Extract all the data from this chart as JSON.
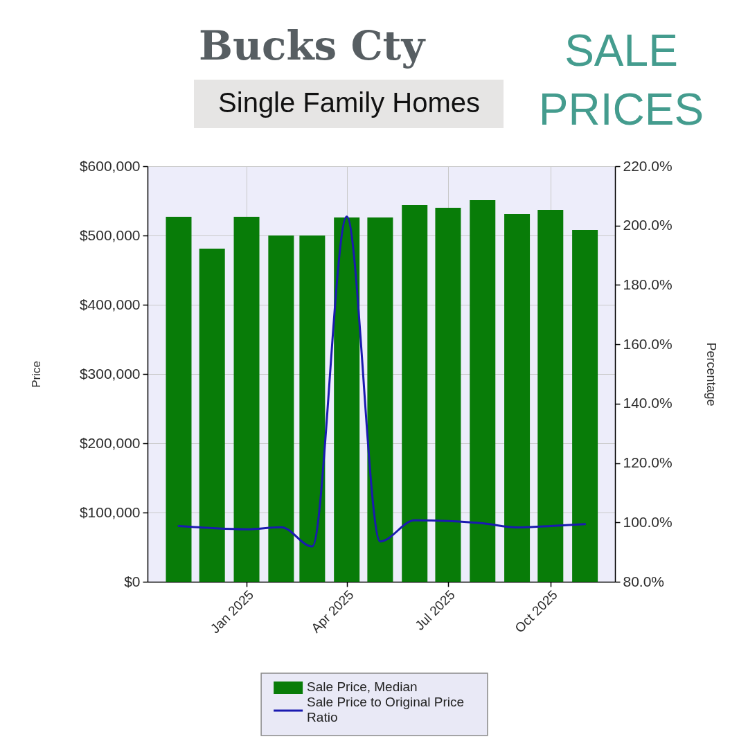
{
  "chart_data": {
    "type": "bar",
    "title": "Bucks Cty",
    "subtitle": "Single Family Homes",
    "annotations": [
      "SALE PRICES"
    ],
    "x": [
      "2024-11",
      "2024-12",
      "2025-01",
      "2025-02",
      "2025-03",
      "2025-04",
      "2025-05",
      "2025-06",
      "2025-07",
      "2025-08",
      "2025-09",
      "2025-10",
      "2025-11"
    ],
    "series": [
      {
        "name": "Sale Price, Median",
        "color": "#087c08",
        "values": [
          527000,
          481000,
          527000,
          500000,
          500000,
          526000,
          526000,
          544000,
          540000,
          551000,
          531000,
          537000,
          508000
        ]
      },
      {
        "name": "Sale Price to Original Price Ratio",
        "type": "line",
        "axis": "y2",
        "color": "#1a1ab0",
        "values": [
          98.8,
          98.1,
          97.7,
          98.4,
          91.9,
          203.0,
          93.6,
          100.7,
          100.5,
          99.7,
          98.3,
          98.8,
          99.4
        ]
      }
    ],
    "xlim": [
      "2024-10-04",
      "2025-11-28"
    ],
    "xticks": [
      {
        "value": "2025-01",
        "label": "Jan 2025"
      },
      {
        "value": "2025-04",
        "label": "Apr 2025"
      },
      {
        "value": "2025-07",
        "label": "Jul 2025"
      },
      {
        "value": "2025-10",
        "label": "Oct 2025"
      }
    ],
    "ylim": [
      0,
      600000
    ],
    "yticks": [
      {
        "value": 0,
        "label": "$0"
      },
      {
        "value": 100000,
        "label": "$100,000"
      },
      {
        "value": 200000,
        "label": "$200,000"
      },
      {
        "value": 300000,
        "label": "$300,000"
      },
      {
        "value": 400000,
        "label": "$400,000"
      },
      {
        "value": 500000,
        "label": "$500,000"
      },
      {
        "value": 600000,
        "label": "$600,000"
      }
    ],
    "y2lim": [
      80,
      220
    ],
    "y2ticks": [
      {
        "value": 80,
        "label": "80.0%"
      },
      {
        "value": 100,
        "label": "100.0%"
      },
      {
        "value": 120,
        "label": "120.0%"
      },
      {
        "value": 140,
        "label": "140.0%"
      },
      {
        "value": 160,
        "label": "160.0%"
      },
      {
        "value": 180,
        "label": "180.0%"
      },
      {
        "value": 200,
        "label": "200.0%"
      },
      {
        "value": 220,
        "label": "220.0%"
      }
    ],
    "ylabel": "Price",
    "y2label": "Percentage",
    "grid": true,
    "legend": "bottom"
  }
}
